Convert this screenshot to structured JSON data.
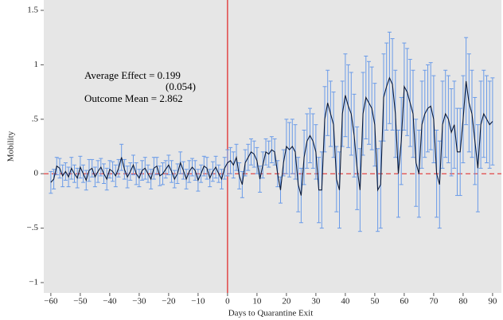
{
  "chart_data": {
    "type": "line",
    "x_label": "Days to Quarantine Exit",
    "y_label": "Mobility",
    "annotations": [
      "Average Effect = 0.199",
      "(0.054)",
      "Outcome Mean = 2.862"
    ],
    "x": [
      -60,
      -59,
      -58,
      -57,
      -56,
      -55,
      -54,
      -53,
      -52,
      -51,
      -50,
      -49,
      -48,
      -47,
      -46,
      -45,
      -44,
      -43,
      -42,
      -41,
      -40,
      -39,
      -38,
      -37,
      -36,
      -35,
      -34,
      -33,
      -32,
      -31,
      -30,
      -29,
      -28,
      -27,
      -26,
      -25,
      -24,
      -23,
      -22,
      -21,
      -20,
      -19,
      -18,
      -17,
      -16,
      -15,
      -14,
      -13,
      -12,
      -11,
      -10,
      -9,
      -8,
      -7,
      -6,
      -5,
      -4,
      -3,
      -2,
      -1,
      0,
      1,
      2,
      3,
      4,
      5,
      6,
      7,
      8,
      9,
      10,
      11,
      12,
      13,
      14,
      15,
      16,
      17,
      18,
      19,
      20,
      21,
      22,
      23,
      24,
      25,
      26,
      27,
      28,
      29,
      30,
      31,
      32,
      33,
      34,
      35,
      36,
      37,
      38,
      39,
      40,
      41,
      42,
      43,
      44,
      45,
      46,
      47,
      48,
      49,
      50,
      51,
      52,
      53,
      54,
      55,
      56,
      57,
      58,
      59,
      60,
      61,
      62,
      63,
      64,
      65,
      66,
      67,
      68,
      69,
      70,
      71,
      72,
      73,
      74,
      75,
      76,
      77,
      78,
      79,
      80,
      81,
      82,
      83,
      84,
      85,
      86,
      87,
      88,
      89,
      90
    ],
    "values": [
      -0.08,
      -0.05,
      0.07,
      0.05,
      -0.02,
      0.02,
      -0.03,
      0.05,
      0.0,
      -0.04,
      0.06,
      0.0,
      -0.06,
      0.03,
      0.05,
      -0.03,
      0.02,
      0.06,
      0.0,
      -0.05,
      0.04,
      0.02,
      -0.02,
      0.05,
      0.15,
      0.04,
      -0.03,
      0.02,
      0.08,
      0.0,
      -0.04,
      0.03,
      0.05,
      0.0,
      -0.05,
      0.05,
      0.07,
      -0.02,
      0.0,
      0.04,
      0.08,
      0.02,
      -0.05,
      0.0,
      0.1,
      0.03,
      -0.05,
      0.02,
      0.06,
      0.03,
      -0.06,
      0.0,
      0.07,
      0.05,
      -0.04,
      0.02,
      0.06,
      0.0,
      -0.05,
      0.05,
      0.1,
      0.12,
      0.08,
      0.15,
      -0.02,
      -0.1,
      0.1,
      0.15,
      0.2,
      0.18,
      0.12,
      -0.05,
      0.08,
      0.2,
      0.18,
      0.22,
      0.2,
      0.0,
      -0.15,
      0.1,
      0.25,
      0.22,
      0.25,
      0.2,
      -0.1,
      -0.2,
      0.15,
      0.3,
      0.35,
      0.3,
      0.2,
      -0.15,
      -0.15,
      0.5,
      0.65,
      0.55,
      0.45,
      -0.05,
      -0.15,
      0.55,
      0.72,
      0.62,
      0.55,
      0.35,
      0.05,
      -0.15,
      0.55,
      0.7,
      0.65,
      0.6,
      0.45,
      -0.15,
      -0.1,
      0.7,
      0.8,
      0.88,
      0.82,
      0.55,
      0.0,
      0.3,
      0.8,
      0.75,
      0.65,
      0.55,
      0.1,
      0.0,
      0.45,
      0.55,
      0.6,
      0.62,
      0.5,
      0.0,
      -0.1,
      0.45,
      0.55,
      0.5,
      0.38,
      0.45,
      0.2,
      0.2,
      0.5,
      0.85,
      0.65,
      0.55,
      0.3,
      0.05,
      0.45,
      0.55,
      0.5,
      0.45,
      0.48
    ],
    "errors": [
      0.1,
      0.09,
      0.08,
      0.09,
      0.1,
      0.08,
      0.09,
      0.1,
      0.08,
      0.09,
      0.1,
      0.08,
      0.09,
      0.1,
      0.08,
      0.09,
      0.1,
      0.08,
      0.09,
      0.1,
      0.08,
      0.09,
      0.1,
      0.08,
      0.12,
      0.09,
      0.1,
      0.08,
      0.09,
      0.1,
      0.08,
      0.09,
      0.1,
      0.08,
      0.09,
      0.1,
      0.08,
      0.09,
      0.1,
      0.08,
      0.09,
      0.1,
      0.08,
      0.09,
      0.1,
      0.08,
      0.09,
      0.1,
      0.08,
      0.09,
      0.1,
      0.08,
      0.09,
      0.1,
      0.08,
      0.09,
      0.1,
      0.08,
      0.09,
      0.1,
      0.12,
      0.12,
      0.12,
      0.12,
      0.12,
      0.12,
      0.12,
      0.12,
      0.12,
      0.12,
      0.12,
      0.12,
      0.12,
      0.12,
      0.12,
      0.12,
      0.12,
      0.12,
      0.12,
      0.12,
      0.25,
      0.25,
      0.25,
      0.25,
      0.25,
      0.25,
      0.25,
      0.25,
      0.25,
      0.25,
      0.25,
      0.3,
      0.35,
      0.3,
      0.3,
      0.3,
      0.3,
      0.3,
      0.35,
      0.3,
      0.38,
      0.38,
      0.38,
      0.38,
      0.38,
      0.38,
      0.38,
      0.38,
      0.38,
      0.38,
      0.38,
      0.38,
      0.4,
      0.4,
      0.4,
      0.42,
      0.42,
      0.4,
      0.4,
      0.4,
      0.4,
      0.4,
      0.4,
      0.4,
      0.4,
      0.4,
      0.4,
      0.4,
      0.4,
      0.4,
      0.4,
      0.4,
      0.4,
      0.4,
      0.4,
      0.4,
      0.4,
      0.4,
      0.4,
      0.4,
      0.4,
      0.4,
      0.45,
      0.4,
      0.4,
      0.4,
      0.4,
      0.4,
      0.4,
      0.4,
      0.4
    ],
    "line_color": "#0a1a3a",
    "error_color": "#6a9be8",
    "ref_color": "#e02020",
    "vline": 0,
    "hline": 0,
    "xlim": [
      -62.4,
      93
    ],
    "ylim": [
      -1.095,
      1.595
    ],
    "xticks": [
      {
        "value": -60,
        "label": "−60"
      },
      {
        "value": -50,
        "label": "−50"
      },
      {
        "value": -40,
        "label": "−40"
      },
      {
        "value": -30,
        "label": "−30"
      },
      {
        "value": -20,
        "label": "−20"
      },
      {
        "value": -10,
        "label": "−10"
      },
      0,
      10,
      20,
      30,
      40,
      50,
      60,
      70,
      80,
      90
    ],
    "yticks": [
      {
        "value": -1,
        "label": "−1"
      },
      {
        "value": -0.5,
        "label": "−.5"
      },
      0,
      {
        "value": 0.5,
        "label": ".5"
      },
      1,
      1.5
    ]
  }
}
